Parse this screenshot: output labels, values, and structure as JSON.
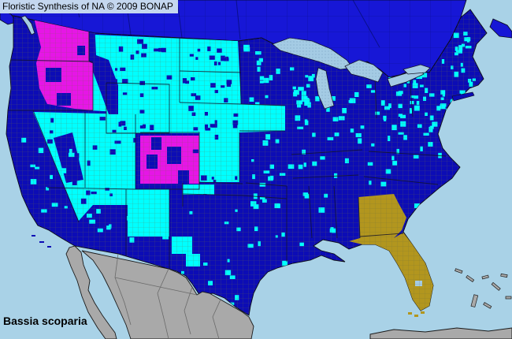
{
  "header": {
    "title": "Floristic Synthesis of NA © 2009 BONAP"
  },
  "footer": {
    "species": "Bassia scoparia"
  },
  "colors": {
    "ocean": "#a9d2e7",
    "canada": "#1717d6",
    "navy": "#0c0cb5",
    "cyan": "#00ffff",
    "magenta": "#e616e6",
    "gold": "#b2961e",
    "gray_land": "#a9a9a9",
    "lake": "#a4cbe4",
    "lake_dot": "#6b97b8",
    "title_bg": "#c4d7ef",
    "county_line": "#6e6e3e",
    "canada_line": "#000a50",
    "state_line": "#15152a",
    "coast_line": "#0a0a14",
    "mexico_line": "#6a6a6a",
    "text": "#000000"
  }
}
